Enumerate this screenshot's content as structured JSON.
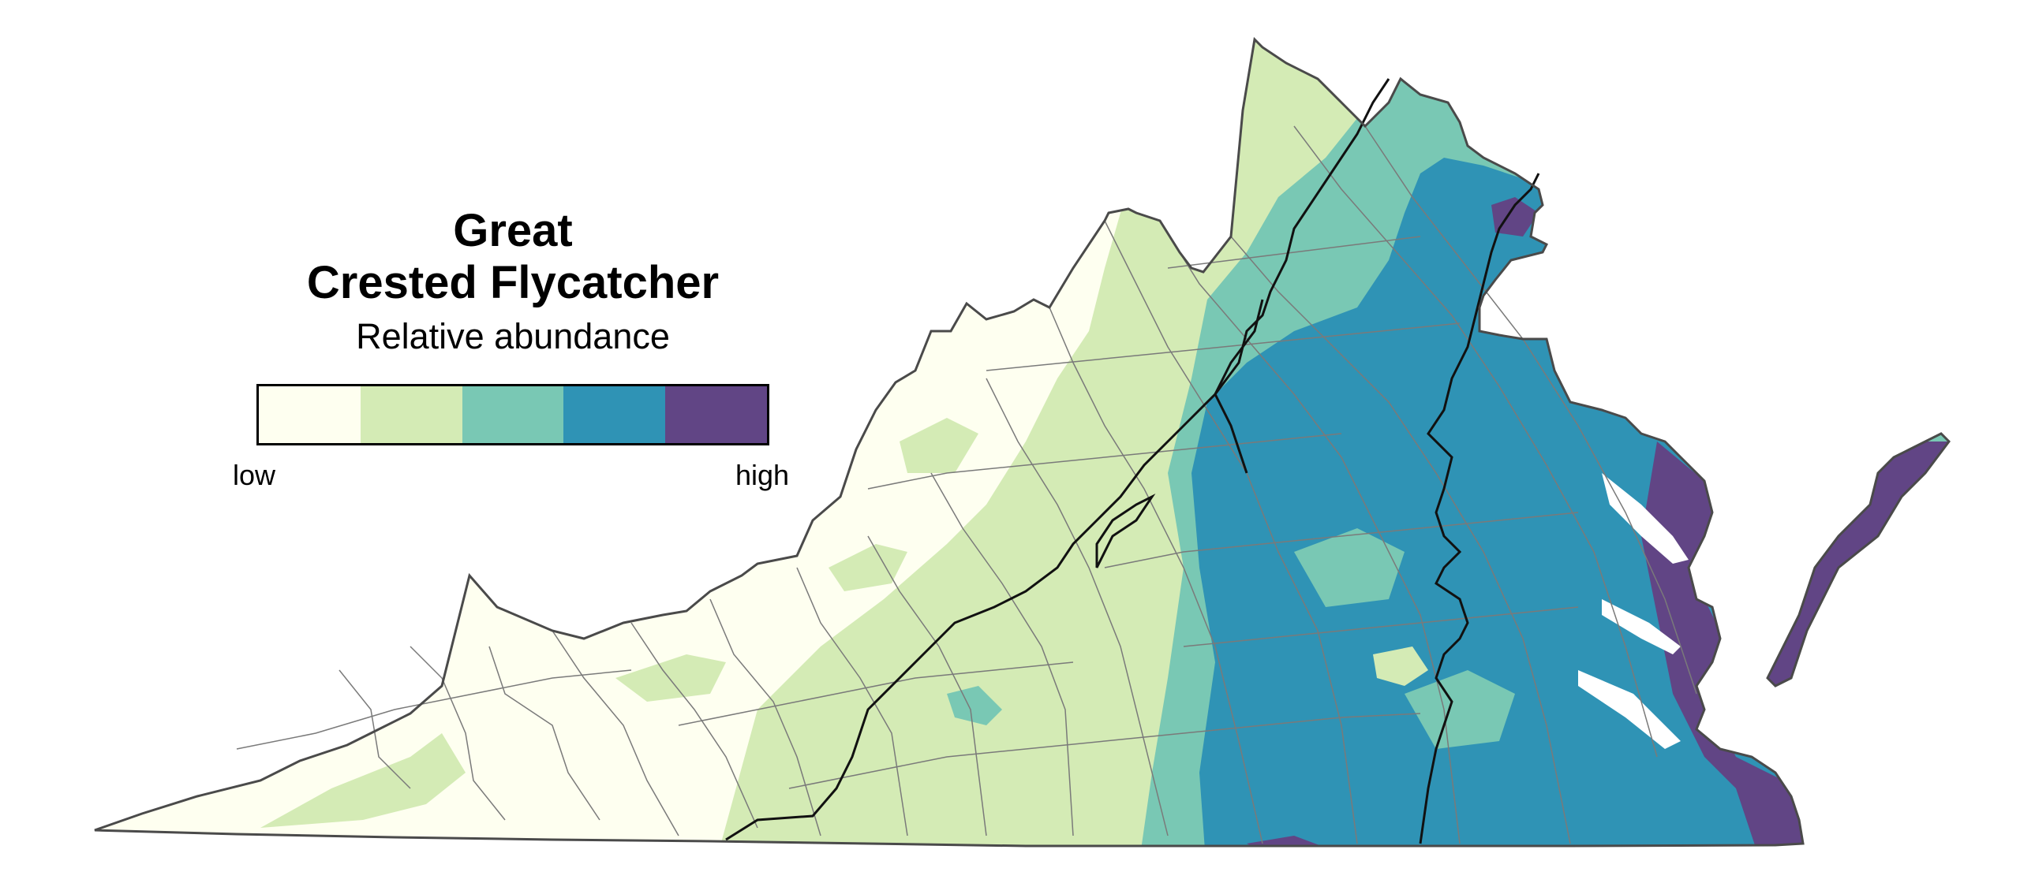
{
  "title": {
    "line1": "Great",
    "line2": "Crested Flycatcher"
  },
  "subtitle": "Relative abundance",
  "legend": {
    "low_label": "low",
    "high_label": "high",
    "classes": [
      {
        "color": "#fefff0"
      },
      {
        "color": "#d4ebb5"
      },
      {
        "color": "#79c8b4"
      },
      {
        "color": "#2f93b5"
      },
      {
        "color": "#614585"
      }
    ]
  },
  "map": {
    "state_outline_color": "#4a4a4a",
    "county_line_color": "#7a7a7a",
    "boundary_line_color": "#111111"
  }
}
